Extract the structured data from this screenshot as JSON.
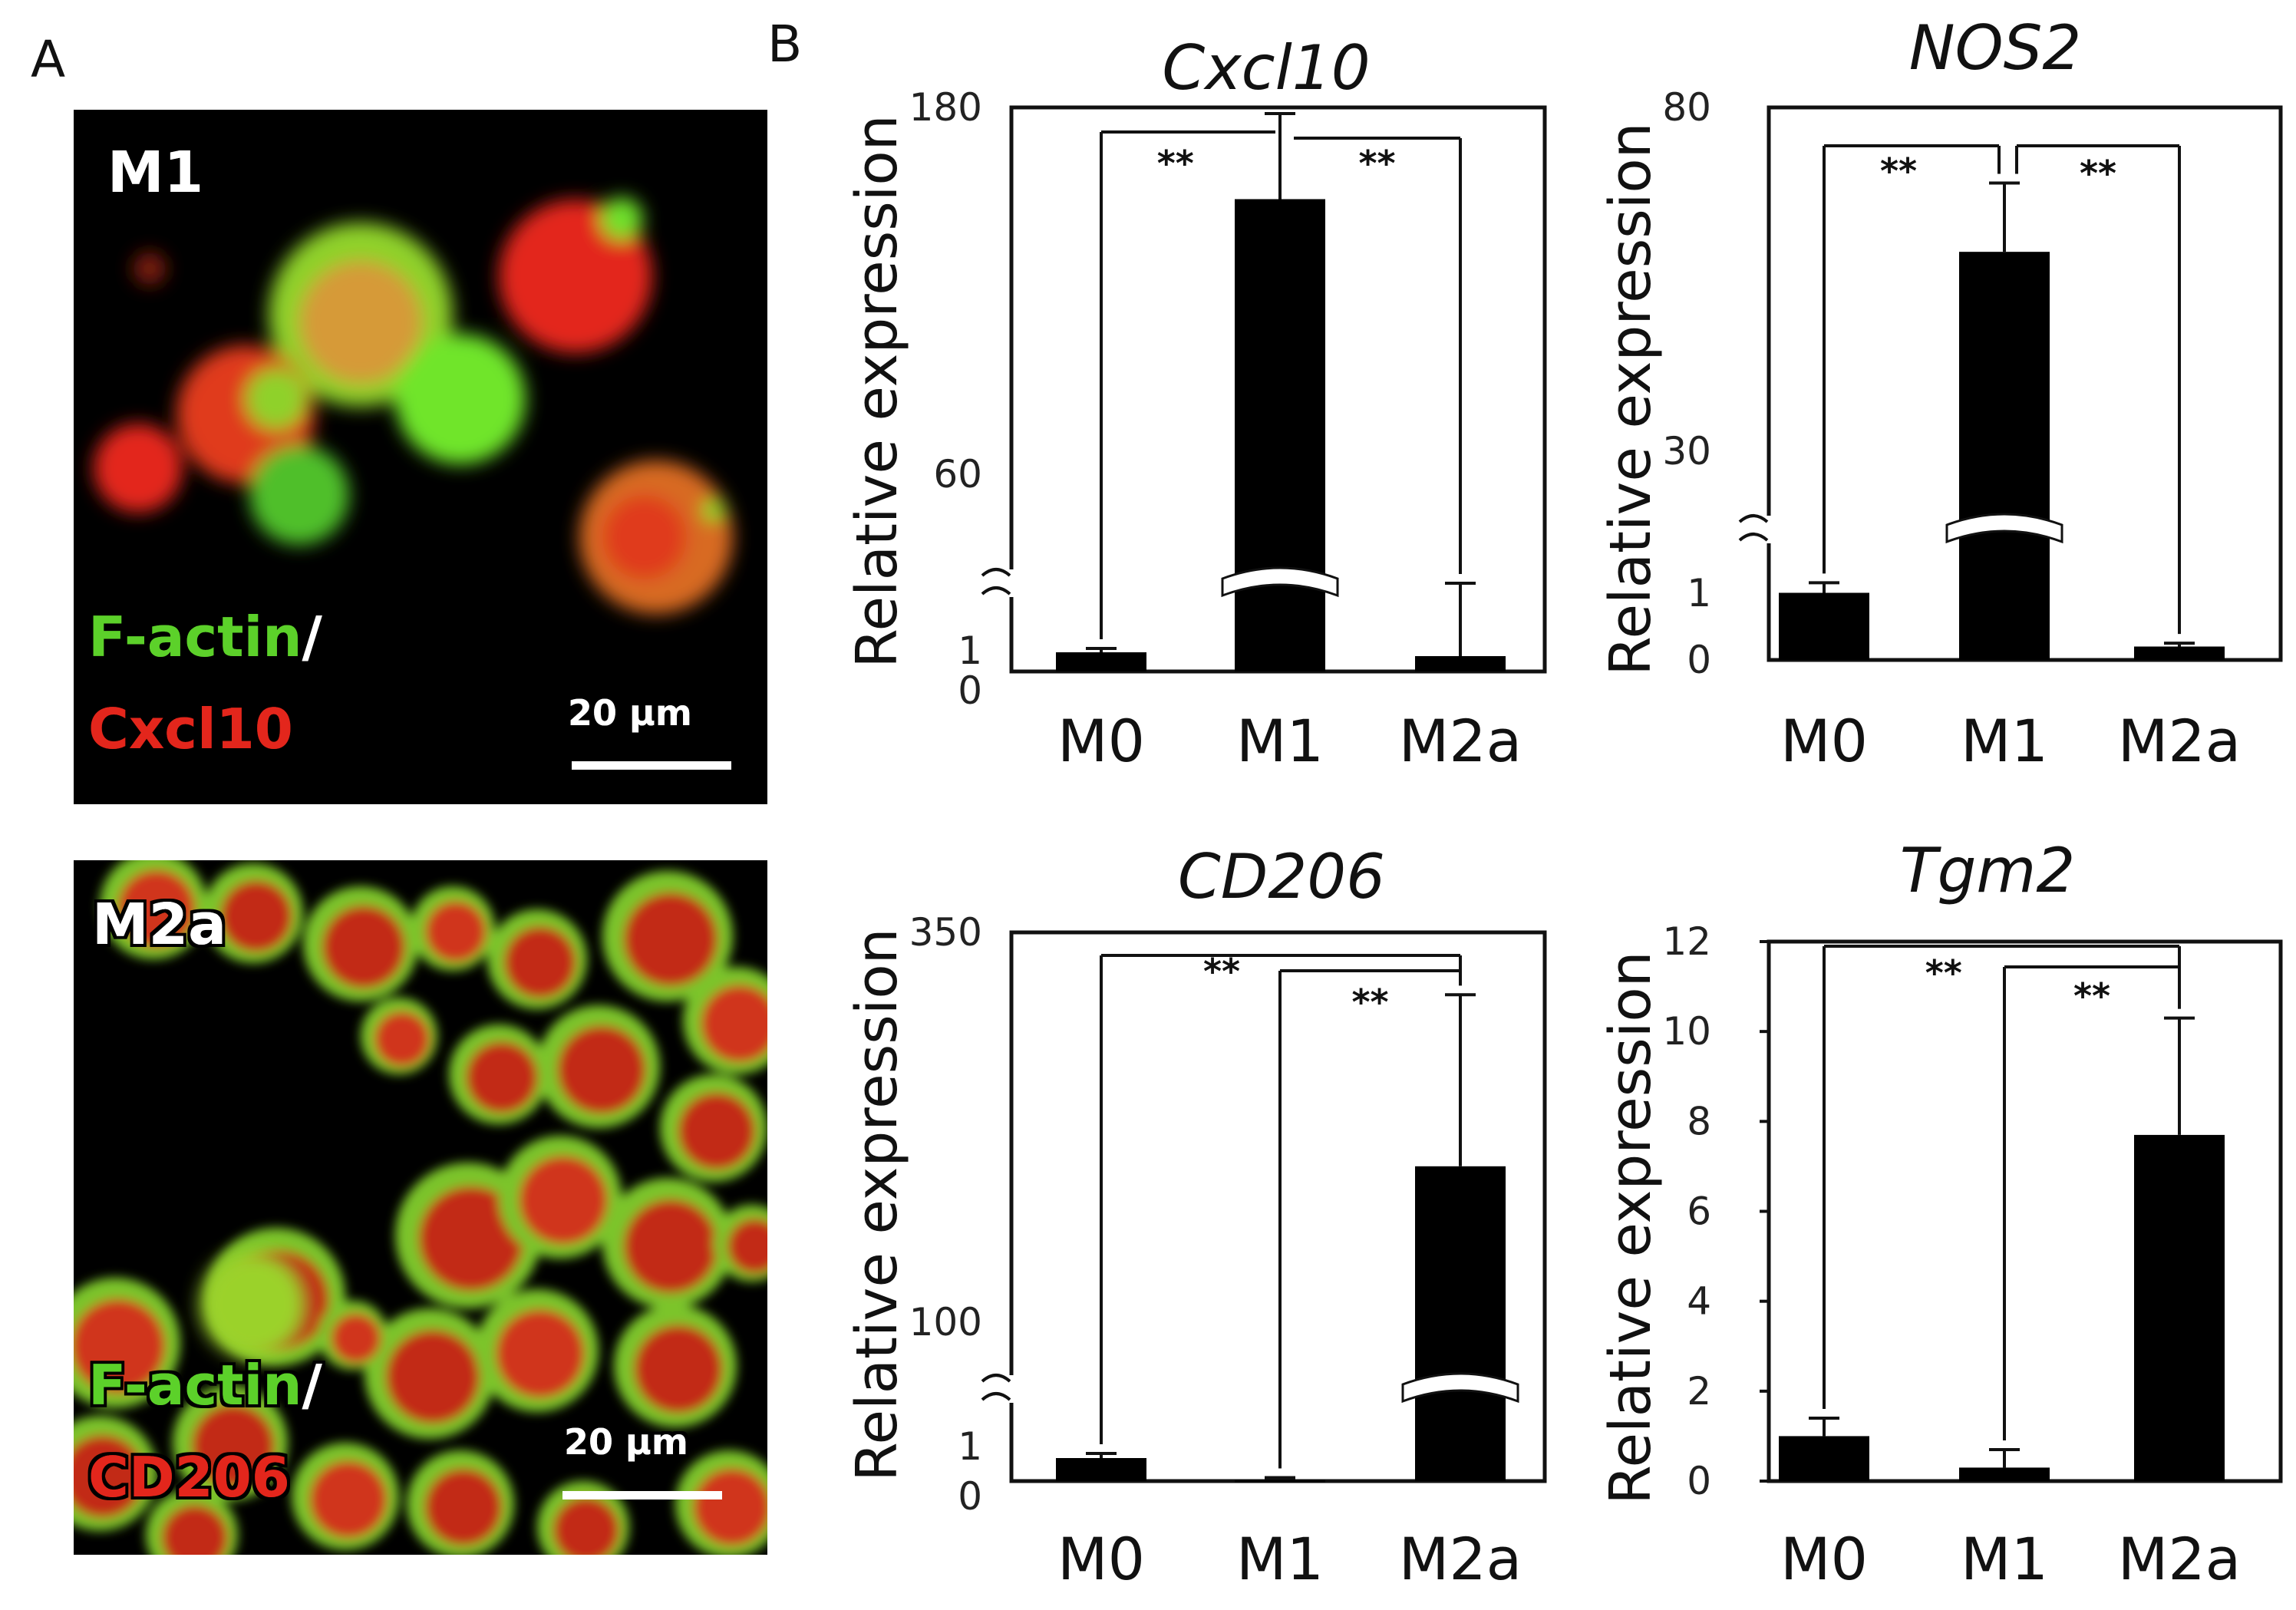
{
  "panels": {
    "a_label": "A",
    "b_label": "B"
  },
  "micrographs": [
    {
      "condition": "M1",
      "stain_green": "F-actin",
      "stain_separator": "/",
      "stain_red": "Cxcl10",
      "scale_label": "20 µm"
    },
    {
      "condition": "M2a",
      "stain_green": "F-actin",
      "stain_separator": "/",
      "stain_red": "CD206",
      "scale_label": "20 µm"
    }
  ],
  "colors": {
    "green_stain": "#5cd12a",
    "red_stain": "#e3271b",
    "bar": "#000000",
    "micrograph_bg": "#000000"
  },
  "chart_data": [
    {
      "type": "bar",
      "title": "Cxcl10",
      "ylabel": "Relative expression",
      "categories": [
        "M0",
        "M1",
        "M2a"
      ],
      "values": [
        1,
        150,
        0.8
      ],
      "errors": [
        0.2,
        28,
        1.6
      ],
      "axis_break": true,
      "y_ticks": [
        "180",
        "60",
        "1",
        "0"
      ],
      "significance": [
        {
          "from": "M0",
          "to": "M1",
          "label": "**"
        },
        {
          "from": "M1",
          "to": "M2a",
          "label": "**"
        }
      ]
    },
    {
      "type": "bar",
      "title": "NOS2",
      "ylabel": "Relative expression",
      "categories": [
        "M0",
        "M1",
        "M2a"
      ],
      "values": [
        1,
        59,
        0.2
      ],
      "errors": [
        0.15,
        10,
        0.05
      ],
      "axis_break": true,
      "y_ticks": [
        "80",
        "30",
        "1",
        "0"
      ],
      "significance": [
        {
          "from": "M0",
          "to": "M1",
          "label": "**"
        },
        {
          "from": "M1",
          "to": "M2a",
          "label": "**"
        }
      ]
    },
    {
      "type": "bar",
      "title": "CD206",
      "ylabel": "Relative expression",
      "categories": [
        "M0",
        "M1",
        "M2a"
      ],
      "values": [
        1,
        0.05,
        200
      ],
      "errors": [
        0.2,
        0.1,
        110
      ],
      "axis_break": true,
      "y_ticks": [
        "350",
        "100",
        "1",
        "0"
      ],
      "significance": [
        {
          "from": "M0",
          "to": "M2a",
          "label": "**"
        },
        {
          "from": "M1",
          "to": "M2a",
          "label": "**"
        }
      ]
    },
    {
      "type": "bar",
      "title": "Tgm2",
      "ylabel": "Relative expression",
      "categories": [
        "M0",
        "M1",
        "M2a"
      ],
      "values": [
        1,
        0.3,
        7.7
      ],
      "errors": [
        0.4,
        0.4,
        2.6
      ],
      "axis_break": false,
      "ylim": [
        0,
        12
      ],
      "y_ticks": [
        "12",
        "10",
        "8",
        "6",
        "4",
        "2",
        "0"
      ],
      "significance": [
        {
          "from": "M0",
          "to": "M2a",
          "label": "**"
        },
        {
          "from": "M1",
          "to": "M2a",
          "label": "**"
        }
      ]
    }
  ]
}
